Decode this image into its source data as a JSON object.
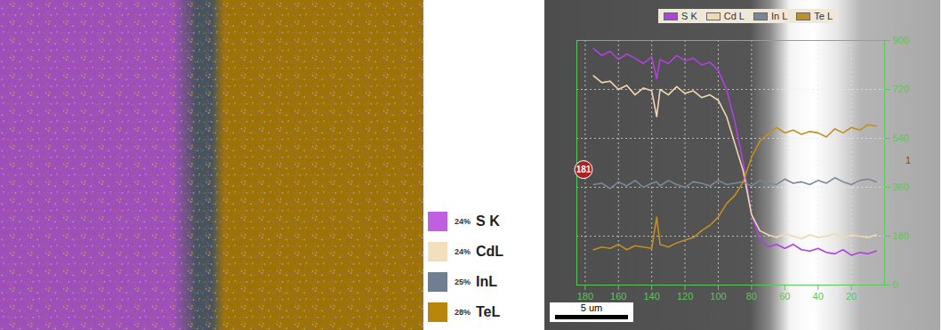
{
  "chart_data": [
    {
      "type": "map",
      "categories": [
        "S K",
        "CdL",
        "InL",
        "TeL"
      ],
      "values": [
        24,
        24,
        25,
        28
      ],
      "value_labels": [
        "24%",
        "24%",
        "25%",
        "28%"
      ],
      "colors": [
        "#c060e0",
        "#f3dfbd",
        "#6f7f8f",
        "#b8860b"
      ]
    },
    {
      "type": "line",
      "x": [
        175,
        170,
        165,
        160,
        155,
        150,
        145,
        140,
        137,
        135,
        130,
        125,
        120,
        115,
        110,
        105,
        100,
        95,
        90,
        85,
        80,
        75,
        70,
        65,
        60,
        55,
        50,
        45,
        40,
        35,
        30,
        25,
        20,
        15,
        10,
        5
      ],
      "series": [
        {
          "name": "S K",
          "color": "#b040e0",
          "values": [
            870,
            845,
            860,
            830,
            850,
            835,
            815,
            840,
            760,
            830,
            815,
            845,
            825,
            835,
            810,
            820,
            790,
            720,
            600,
            450,
            260,
            170,
            140,
            150,
            135,
            150,
            130,
            125,
            135,
            120,
            115,
            130,
            110,
            120,
            115,
            125
          ]
        },
        {
          "name": "Cd L",
          "color": "#f0d8b0",
          "values": [
            770,
            745,
            750,
            720,
            735,
            700,
            725,
            715,
            620,
            720,
            700,
            730,
            705,
            715,
            690,
            700,
            680,
            620,
            520,
            420,
            260,
            200,
            185,
            175,
            190,
            180,
            170,
            185,
            175,
            180,
            190,
            170,
            185,
            180,
            175,
            185
          ]
        },
        {
          "name": "In L",
          "color": "#7a8896",
          "values": [
            370,
            375,
            355,
            380,
            365,
            385,
            360,
            375,
            380,
            365,
            385,
            370,
            360,
            380,
            375,
            365,
            385,
            370,
            375,
            380,
            365,
            385,
            375,
            370,
            390,
            375,
            380,
            370,
            385,
            375,
            395,
            380,
            370,
            385,
            390,
            380
          ]
        },
        {
          "name": "Te L",
          "color": "#c09020",
          "values": [
            130,
            140,
            135,
            150,
            130,
            145,
            140,
            135,
            250,
            150,
            140,
            155,
            165,
            175,
            200,
            220,
            250,
            300,
            330,
            380,
            470,
            530,
            555,
            580,
            560,
            570,
            555,
            565,
            560,
            545,
            575,
            560,
            580,
            570,
            590,
            585
          ]
        }
      ],
      "xlim": [
        185,
        0
      ],
      "xticks": [
        180,
        160,
        140,
        120,
        100,
        80,
        60,
        40,
        20
      ],
      "ylim": [
        0,
        900
      ],
      "yticks": [
        0,
        180,
        360,
        540,
        720,
        900
      ],
      "grid": true,
      "legend": "top",
      "annotations": [
        {
          "text": "181",
          "x": 181,
          "y": 425
        },
        {
          "text": "1"
        }
      ],
      "scale_bar": "5 um"
    }
  ]
}
